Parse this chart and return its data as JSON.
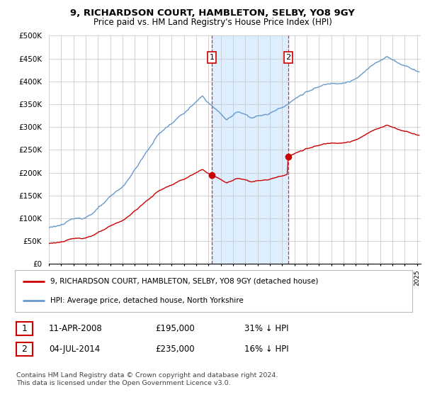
{
  "title": "9, RICHARDSON COURT, HAMBLETON, SELBY, YO8 9GY",
  "subtitle": "Price paid vs. HM Land Registry's House Price Index (HPI)",
  "ylabel_ticks": [
    "£0",
    "£50K",
    "£100K",
    "£150K",
    "£200K",
    "£250K",
    "£300K",
    "£350K",
    "£400K",
    "£450K",
    "£500K"
  ],
  "ytick_values": [
    0,
    50000,
    100000,
    150000,
    200000,
    250000,
    300000,
    350000,
    400000,
    450000,
    500000
  ],
  "ylim": [
    0,
    500000
  ],
  "xlim_start": 1995.0,
  "xlim_end": 2025.3,
  "hpi_color": "#6699cc",
  "price_color": "#cc0000",
  "transaction1_date": 2008.28,
  "transaction1_price": 195000,
  "transaction2_date": 2014.5,
  "transaction2_price": 235000,
  "legend_line1": "9, RICHARDSON COURT, HAMBLETON, SELBY, YO8 9GY (detached house)",
  "legend_line2": "HPI: Average price, detached house, North Yorkshire",
  "table_row1_label": "1",
  "table_row1_date": "11-APR-2008",
  "table_row1_price": "£195,000",
  "table_row1_hpi": "31% ↓ HPI",
  "table_row2_label": "2",
  "table_row2_date": "04-JUL-2014",
  "table_row2_price": "£235,000",
  "table_row2_hpi": "16% ↓ HPI",
  "footnote": "Contains HM Land Registry data © Crown copyright and database right 2024.\nThis data is licensed under the Open Government Licence v3.0.",
  "background_color": "#ffffff",
  "plot_bg_color": "#ffffff",
  "grid_color": "#cccccc",
  "shaded_region_color": "#ddeeff"
}
